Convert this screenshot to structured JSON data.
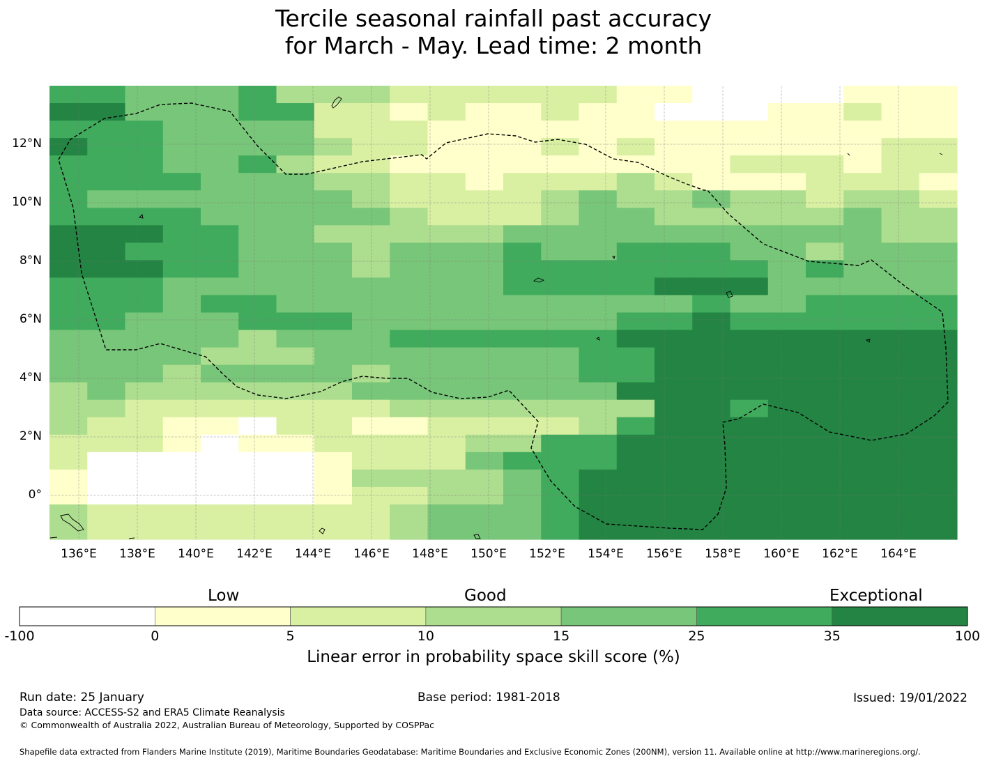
{
  "title": {
    "line1": "Tercile seasonal rainfall past accuracy",
    "line2": "for March - May. Lead time: 2 month"
  },
  "map": {
    "lon_labels": [
      "136°E",
      "138°E",
      "140°E",
      "142°E",
      "144°E",
      "146°E",
      "148°E",
      "150°E",
      "152°E",
      "154°E",
      "156°E",
      "158°E",
      "160°E",
      "162°E",
      "164°E"
    ],
    "lat_labels": [
      "12°N",
      "10°N",
      "8°N",
      "6°N",
      "4°N",
      "2°N",
      "0°"
    ],
    "lon_range": [
      135.0,
      166.0
    ],
    "lat_range": [
      -1.5,
      14.0
    ],
    "cell_size_deg": 0.8333,
    "skill_grid": [
      "554445333222222110000111",
      "664445522121121100011211",
      "555444422211111111111111",
      "655444432211121211111122",
      "555445322111111111222122",
      "555544433221222321112221",
      "544444443222234334332332",
      "555544444322234433333433",
      "666554433333444444444433",
      "665554443444544555443444",
      "666554443444555555545444",
      "555444444444555566644444",
      "555455444444444445445555",
      "554445554444444556555555",
      "444443444555555666666666",
      "444433344444445566666666",
      "444344443444445566666666",
      "343333334444444666666666",
      "332222222333333366566666",
      "322110221122223566666666",
      "222101122223355666666666",
      "200000012224555666666666",
      "100000013333456666666666",
      "100000012233456666666666",
      "322222222344456666666666",
      "322222222344456666666666"
    ]
  },
  "legend": {
    "category_labels": [
      "Low",
      "Good",
      "Exceptional"
    ],
    "ticks": [
      "-100",
      "0",
      "5",
      "10",
      "15",
      "25",
      "35",
      "100"
    ],
    "colors": [
      "#ffffff",
      "#ffffcc",
      "#d9f0a3",
      "#addd8e",
      "#78c679",
      "#41ab5d",
      "#238443"
    ],
    "title": "Linear error in probability space skill score (%)"
  },
  "footer": {
    "run_date": "Run date: 25 January",
    "base_period": "Base period: 1981-2018",
    "issued": "Issued: 19/01/2022",
    "data_source": "Data source: ACCESS-S2 and ERA5 Climate Reanalysis",
    "copyright": "© Commonwealth of Australia 2022, Australian Bureau of Meteorology, Supported by COSPPac",
    "shapefile": "Shapefile data extracted from Flanders Marine Institute (2019), Maritime Boundaries Geodatabase: Maritime Boundaries and Exclusive Economic Zones (200NM), version 11. Available online at http://www.marineregions.org/."
  }
}
